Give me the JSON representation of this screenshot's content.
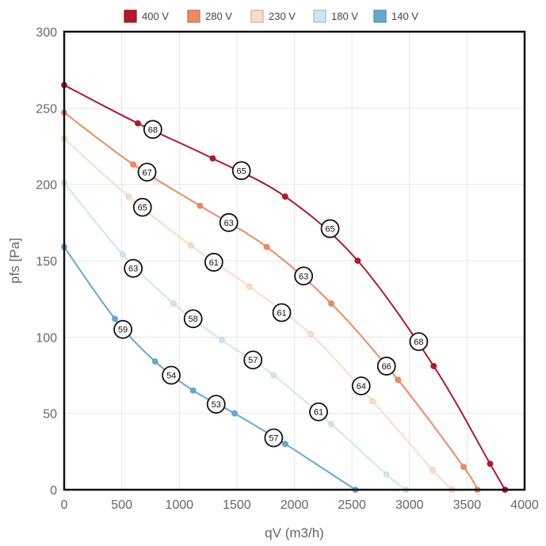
{
  "chart_data": {
    "type": "line",
    "xlabel": "qV (m3/h)",
    "ylabel": "pfs [Pa]",
    "xlim": [
      0,
      4000
    ],
    "ylim": [
      0,
      300
    ],
    "x_ticks": [
      "0",
      "500",
      "1000",
      "1500",
      "2000",
      "2500",
      "3000",
      "3500",
      "4000"
    ],
    "y_ticks": [
      "0",
      "50",
      "100",
      "150",
      "200",
      "250",
      "300"
    ],
    "grid": true,
    "legend_position": "top",
    "series": [
      {
        "name": "400 V",
        "color": "#b2182b",
        "points": [
          [
            0,
            265
          ],
          [
            640,
            240
          ],
          [
            1290,
            217
          ],
          [
            1920,
            192
          ],
          [
            2550,
            150
          ],
          [
            3210,
            81
          ],
          [
            3700,
            17
          ],
          [
            3830,
            0
          ]
        ],
        "labels": [
          {
            "x": 770,
            "y": 236,
            "text": "68"
          },
          {
            "x": 1540,
            "y": 209,
            "text": "65"
          },
          {
            "x": 2310,
            "y": 171,
            "text": "65"
          },
          {
            "x": 3080,
            "y": 97,
            "text": "68"
          }
        ]
      },
      {
        "name": "280 V",
        "color": "#ef8a62",
        "points": [
          [
            0,
            247
          ],
          [
            600,
            213
          ],
          [
            1180,
            186
          ],
          [
            1760,
            159
          ],
          [
            2320,
            122
          ],
          [
            2900,
            72
          ],
          [
            3470,
            15
          ],
          [
            3590,
            0
          ]
        ],
        "labels": [
          {
            "x": 720,
            "y": 208,
            "text": "67"
          },
          {
            "x": 1430,
            "y": 175,
            "text": "63"
          },
          {
            "x": 2080,
            "y": 140,
            "text": "63"
          },
          {
            "x": 2800,
            "y": 81,
            "text": "66"
          }
        ]
      },
      {
        "name": "230 V",
        "color": "#fddbc7",
        "points": [
          [
            0,
            230
          ],
          [
            560,
            192
          ],
          [
            1100,
            160
          ],
          [
            1610,
            133
          ],
          [
            2140,
            102
          ],
          [
            2680,
            58
          ],
          [
            3200,
            13
          ],
          [
            3370,
            0
          ]
        ],
        "labels": [
          {
            "x": 680,
            "y": 185,
            "text": "65"
          },
          {
            "x": 1300,
            "y": 149,
            "text": "61"
          },
          {
            "x": 1890,
            "y": 116,
            "text": "61"
          },
          {
            "x": 2580,
            "y": 68,
            "text": "64"
          }
        ]
      },
      {
        "name": "180 V",
        "color": "#d1e5f0",
        "points": [
          [
            0,
            201
          ],
          [
            510,
            154
          ],
          [
            950,
            122
          ],
          [
            1370,
            98
          ],
          [
            1820,
            75
          ],
          [
            2320,
            43
          ],
          [
            2800,
            10
          ],
          [
            2970,
            0
          ]
        ],
        "labels": [
          {
            "x": 600,
            "y": 145,
            "text": "63"
          },
          {
            "x": 1120,
            "y": 112,
            "text": "58"
          },
          {
            "x": 1640,
            "y": 85,
            "text": "57"
          },
          {
            "x": 2210,
            "y": 51,
            "text": "61"
          }
        ]
      },
      {
        "name": "140 V",
        "color": "#67a9cf",
        "points": [
          [
            0,
            159
          ],
          [
            440,
            112
          ],
          [
            790,
            84
          ],
          [
            1120,
            65
          ],
          [
            1480,
            50
          ],
          [
            1920,
            30
          ],
          [
            2530,
            0
          ]
        ],
        "labels": [
          {
            "x": 510,
            "y": 105,
            "text": "59"
          },
          {
            "x": 930,
            "y": 75,
            "text": "54"
          },
          {
            "x": 1320,
            "y": 56,
            "text": "53"
          },
          {
            "x": 1820,
            "y": 34,
            "text": "57"
          }
        ]
      }
    ]
  }
}
